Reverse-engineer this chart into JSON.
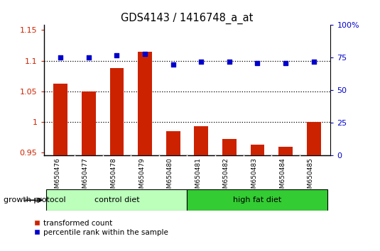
{
  "title": "GDS4143 / 1416748_a_at",
  "samples": [
    "GSM650476",
    "GSM650477",
    "GSM650478",
    "GSM650479",
    "GSM650480",
    "GSM650481",
    "GSM650482",
    "GSM650483",
    "GSM650484",
    "GSM650485"
  ],
  "transformed_counts": [
    1.063,
    1.05,
    1.088,
    1.115,
    0.985,
    0.993,
    0.972,
    0.963,
    0.96,
    1.0
  ],
  "percentile_ranks": [
    75,
    75,
    77,
    78,
    70,
    72,
    72,
    71,
    71,
    72
  ],
  "groups": [
    {
      "label": "control diet",
      "indices": [
        0,
        1,
        2,
        3,
        4
      ],
      "color": "#bbffbb",
      "edgecolor": "#33aa33"
    },
    {
      "label": "high fat diet",
      "indices": [
        5,
        6,
        7,
        8,
        9
      ],
      "color": "#33cc33",
      "edgecolor": "#33aa33"
    }
  ],
  "group_label": "growth protocol",
  "bar_color": "#cc2200",
  "dot_color": "#0000cc",
  "ylim_left": [
    0.945,
    1.158
  ],
  "ylim_right": [
    0,
    100
  ],
  "yticks_left": [
    0.95,
    1.0,
    1.05,
    1.1,
    1.15
  ],
  "ytick_labels_left": [
    "0.95",
    "1",
    "1.05",
    "1.1",
    "1.15"
  ],
  "yticks_right": [
    0,
    25,
    50,
    75,
    100
  ],
  "ytick_labels_right": [
    "0",
    "25",
    "50",
    "75",
    "100%"
  ],
  "dotted_lines": [
    1.1,
    1.05,
    1.0
  ],
  "bar_width": 0.5,
  "tick_area_color": "#cccccc",
  "legend_items": [
    {
      "label": "transformed count",
      "color": "#cc2200"
    },
    {
      "label": "percentile rank within the sample",
      "color": "#0000cc"
    }
  ],
  "base_value": 0.945
}
